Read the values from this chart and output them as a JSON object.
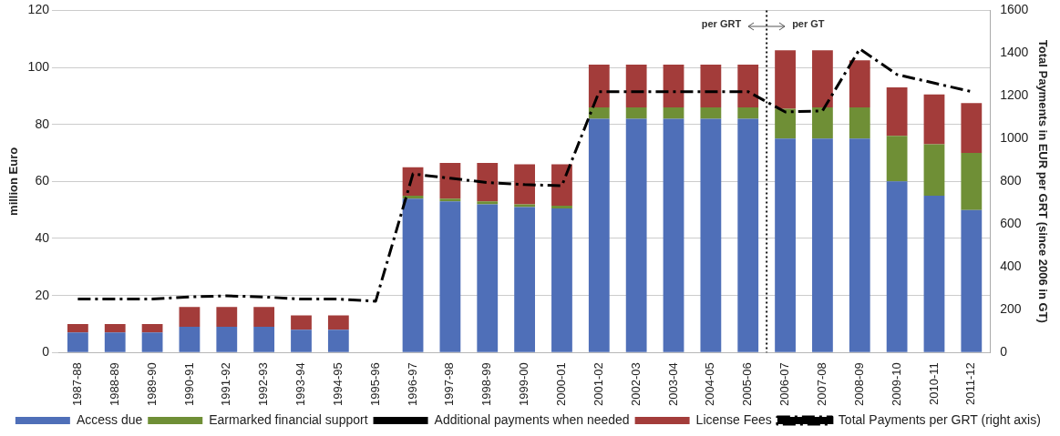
{
  "chart_data": {
    "type": "bar",
    "stacked": true,
    "categories": [
      "1987-88",
      "1988-89",
      "1989-90",
      "1990-91",
      "1991-92",
      "1992-93",
      "1993-94",
      "1994-95",
      "1995-96",
      "1996-97",
      "1997-98",
      "1998-99",
      "1999-00",
      "2000-01",
      "2001-02",
      "2002-03",
      "2003-04",
      "2004-05",
      "2005-06",
      "2006-07",
      "2007-08",
      "2008-09",
      "2009-10",
      "2010-11",
      "2011-12"
    ],
    "series": [
      {
        "name": "Access due",
        "color": "#4f6fb8",
        "values": [
          7,
          7,
          7,
          9,
          9,
          9,
          8,
          8,
          null,
          54,
          53,
          52,
          51,
          50.5,
          82,
          82,
          82,
          82,
          82,
          75,
          75,
          75,
          60,
          55,
          50
        ]
      },
      {
        "name": "Earmarked financial support",
        "color": "#6f8f36",
        "values": [
          0,
          0,
          0,
          0,
          0,
          0,
          0,
          0,
          null,
          1,
          1,
          1,
          1,
          1,
          4,
          4,
          4,
          4,
          4,
          10.5,
          11,
          11,
          16,
          18,
          20
        ]
      },
      {
        "name": "Additional payments when needed",
        "color": "#000000",
        "values": [
          null,
          null,
          null,
          null,
          null,
          null,
          null,
          null,
          null,
          null,
          null,
          null,
          null,
          null,
          null,
          null,
          null,
          null,
          null,
          null,
          null,
          null,
          null,
          null,
          null
        ]
      },
      {
        "name": "License Fees",
        "color": "#a33c3a",
        "values": [
          3,
          3,
          3,
          7,
          7,
          7,
          5,
          5,
          null,
          10,
          12.5,
          13.5,
          14,
          14.5,
          15,
          15,
          15,
          15,
          15,
          20.5,
          20,
          16.5,
          17,
          17.5,
          17.5
        ]
      },
      {
        "name": "Total Payments per GRT (right axis)",
        "type": "line",
        "axis": "y2",
        "color": "#000000",
        "line_style": "dashed",
        "values": [
          250,
          250,
          250,
          260,
          265,
          260,
          250,
          250,
          240,
          835,
          815,
          795,
          785,
          780,
          1220,
          1220,
          1220,
          1220,
          1220,
          1125,
          1130,
          1420,
          1300,
          1260,
          1220
        ]
      }
    ],
    "ylabel": "million Euro",
    "y2label": "Total Payments in EUR per GRT (since 2006 in GT)",
    "ylim": [
      0,
      120
    ],
    "yticks": [
      0,
      20,
      40,
      60,
      80,
      100,
      120
    ],
    "y2lim": [
      0,
      1600
    ],
    "y2ticks": [
      0,
      200,
      400,
      600,
      800,
      1000,
      1200,
      1400,
      1600
    ],
    "grid": "y",
    "legend": "bottom",
    "marker": "none",
    "ref_lines": [
      {
        "axis": "x",
        "value": "2006-07",
        "color": "#111111",
        "line_style": "dotted"
      }
    ],
    "annotations": [
      "per GRT",
      "per GT"
    ]
  }
}
